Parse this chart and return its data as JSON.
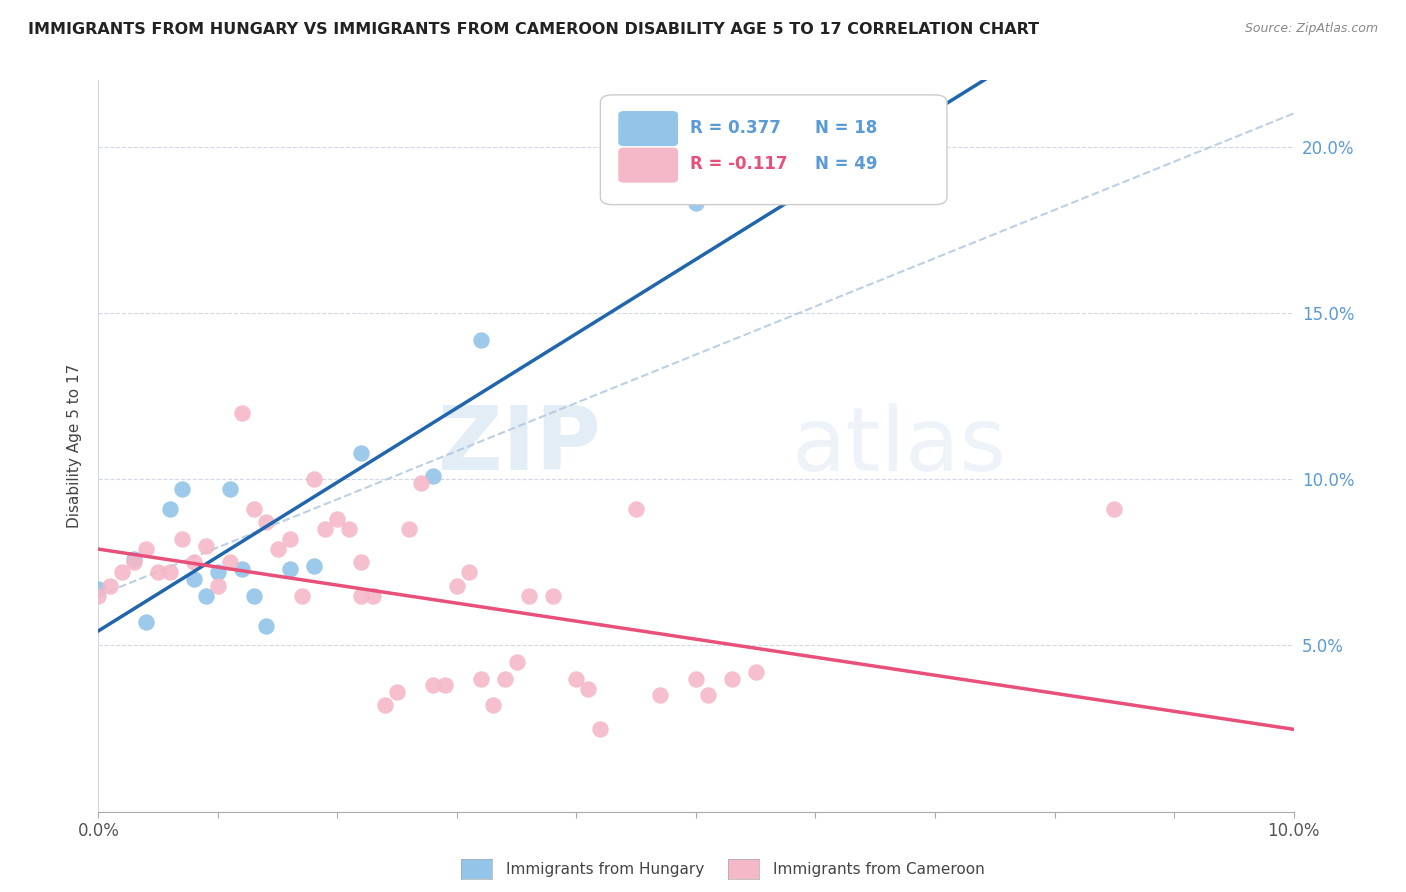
{
  "title": "IMMIGRANTS FROM HUNGARY VS IMMIGRANTS FROM CAMEROON DISABILITY AGE 5 TO 17 CORRELATION CHART",
  "source": "Source: ZipAtlas.com",
  "ylabel": "Disability Age 5 to 17",
  "ylabel_right_ticks": [
    "5.0%",
    "10.0%",
    "15.0%",
    "20.0%"
  ],
  "ylabel_right_vals": [
    0.05,
    0.1,
    0.15,
    0.2
  ],
  "hungary_color": "#92c5e8",
  "cameroon_color": "#f4b8c8",
  "regression_hungary_color": "#2166ac",
  "regression_cameroon_color": "#e8507a",
  "dashed_line_color": "#b0c8e0",
  "watermark_zip": "ZIP",
  "watermark_atlas": "atlas",
  "hungary_r": "0.377",
  "hungary_n": "18",
  "cameroon_r": "-0.117",
  "cameroon_n": "49",
  "hungary_points_x": [
    0.0,
    0.003,
    0.004,
    0.006,
    0.007,
    0.008,
    0.009,
    0.01,
    0.011,
    0.012,
    0.013,
    0.014,
    0.016,
    0.018,
    0.022,
    0.028,
    0.032,
    0.05
  ],
  "hungary_points_y": [
    0.067,
    0.076,
    0.057,
    0.091,
    0.097,
    0.07,
    0.065,
    0.072,
    0.097,
    0.073,
    0.065,
    0.056,
    0.073,
    0.074,
    0.108,
    0.101,
    0.142,
    0.183
  ],
  "cameroon_points_x": [
    0.0,
    0.001,
    0.002,
    0.003,
    0.004,
    0.005,
    0.006,
    0.007,
    0.008,
    0.009,
    0.01,
    0.011,
    0.012,
    0.013,
    0.014,
    0.015,
    0.016,
    0.017,
    0.018,
    0.019,
    0.02,
    0.021,
    0.022,
    0.022,
    0.023,
    0.024,
    0.025,
    0.026,
    0.027,
    0.028,
    0.029,
    0.03,
    0.031,
    0.032,
    0.033,
    0.034,
    0.035,
    0.036,
    0.038,
    0.04,
    0.041,
    0.042,
    0.045,
    0.047,
    0.05,
    0.051,
    0.053,
    0.055,
    0.085
  ],
  "cameroon_points_y": [
    0.065,
    0.068,
    0.072,
    0.075,
    0.079,
    0.072,
    0.072,
    0.082,
    0.075,
    0.08,
    0.068,
    0.075,
    0.12,
    0.091,
    0.087,
    0.079,
    0.082,
    0.065,
    0.1,
    0.085,
    0.088,
    0.085,
    0.065,
    0.075,
    0.065,
    0.032,
    0.036,
    0.085,
    0.099,
    0.038,
    0.038,
    0.068,
    0.072,
    0.04,
    0.032,
    0.04,
    0.045,
    0.065,
    0.065,
    0.04,
    0.037,
    0.025,
    0.091,
    0.035,
    0.04,
    0.035,
    0.04,
    0.042,
    0.091
  ],
  "xlim": [
    0,
    0.1
  ],
  "ylim": [
    0,
    0.22
  ],
  "xticks": [
    0.0,
    0.01,
    0.02,
    0.03,
    0.04,
    0.05,
    0.06,
    0.07,
    0.08,
    0.09,
    0.1
  ],
  "yticks": [
    0.05,
    0.1,
    0.15,
    0.2
  ]
}
